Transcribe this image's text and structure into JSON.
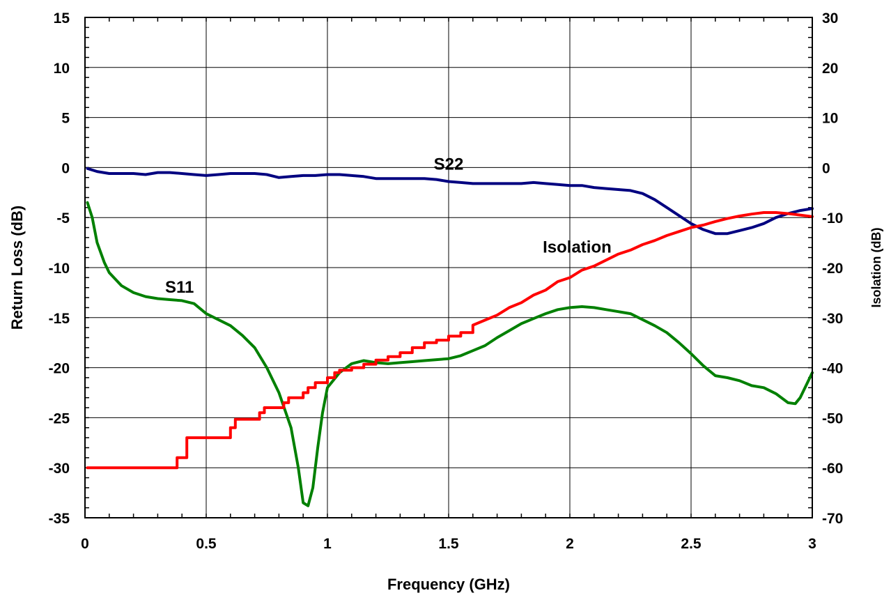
{
  "chart_data": {
    "type": "line",
    "title": "",
    "xlabel": "Frequency (GHz)",
    "ylabel": "Return Loss (dB)",
    "y2label": "Isolation (dB)",
    "xlim": [
      0,
      3
    ],
    "ylim": [
      -35,
      15
    ],
    "y2lim": [
      -70,
      30
    ],
    "grid": true,
    "x_ticks": [
      "0",
      "0.5",
      "1",
      "1.5",
      "2",
      "2.5",
      "3"
    ],
    "y_ticks": [
      "15",
      "10",
      "5",
      "0",
      "-5",
      "-10",
      "-15",
      "-20",
      "-25",
      "-30",
      "-35"
    ],
    "y2_ticks": [
      "30",
      "20",
      "10",
      "0",
      "-10",
      "-20",
      "-30",
      "-40",
      "-50",
      "-60",
      "-70"
    ],
    "series": [
      {
        "name": "S22",
        "axis": "left",
        "color": "#000080",
        "x": [
          0.01,
          0.05,
          0.1,
          0.15,
          0.2,
          0.25,
          0.3,
          0.35,
          0.4,
          0.45,
          0.5,
          0.55,
          0.6,
          0.65,
          0.7,
          0.75,
          0.8,
          0.85,
          0.9,
          0.95,
          1.0,
          1.05,
          1.1,
          1.15,
          1.2,
          1.25,
          1.3,
          1.35,
          1.4,
          1.45,
          1.5,
          1.55,
          1.6,
          1.65,
          1.7,
          1.75,
          1.8,
          1.85,
          1.9,
          1.95,
          2.0,
          2.05,
          2.1,
          2.15,
          2.2,
          2.25,
          2.3,
          2.35,
          2.4,
          2.45,
          2.5,
          2.55,
          2.6,
          2.65,
          2.7,
          2.75,
          2.8,
          2.85,
          2.9,
          2.95,
          3.0
        ],
        "values": [
          -0.1,
          -0.4,
          -0.6,
          -0.6,
          -0.6,
          -0.7,
          -0.5,
          -0.5,
          -0.6,
          -0.7,
          -0.8,
          -0.7,
          -0.6,
          -0.6,
          -0.6,
          -0.7,
          -1.0,
          -0.9,
          -0.8,
          -0.8,
          -0.7,
          -0.7,
          -0.8,
          -0.9,
          -1.1,
          -1.1,
          -1.1,
          -1.1,
          -1.1,
          -1.2,
          -1.4,
          -1.5,
          -1.6,
          -1.6,
          -1.6,
          -1.6,
          -1.6,
          -1.5,
          -1.6,
          -1.7,
          -1.8,
          -1.8,
          -2.0,
          -2.1,
          -2.2,
          -2.3,
          -2.6,
          -3.2,
          -4.0,
          -4.8,
          -5.6,
          -6.2,
          -6.6,
          -6.6,
          -6.3,
          -6.0,
          -5.6,
          -5.0,
          -4.6,
          -4.3,
          -4.1
        ]
      },
      {
        "name": "S11",
        "axis": "left",
        "color": "#008000",
        "x": [
          0.01,
          0.03,
          0.05,
          0.08,
          0.1,
          0.15,
          0.2,
          0.25,
          0.3,
          0.35,
          0.4,
          0.45,
          0.5,
          0.55,
          0.6,
          0.65,
          0.7,
          0.75,
          0.8,
          0.85,
          0.88,
          0.9,
          0.92,
          0.94,
          0.96,
          0.98,
          1.0,
          1.05,
          1.1,
          1.15,
          1.2,
          1.25,
          1.3,
          1.35,
          1.4,
          1.45,
          1.5,
          1.55,
          1.6,
          1.65,
          1.7,
          1.75,
          1.8,
          1.85,
          1.9,
          1.95,
          2.0,
          2.05,
          2.1,
          2.15,
          2.2,
          2.25,
          2.3,
          2.35,
          2.4,
          2.45,
          2.5,
          2.55,
          2.6,
          2.65,
          2.7,
          2.75,
          2.8,
          2.85,
          2.9,
          2.93,
          2.95,
          3.0
        ],
        "values": [
          -3.5,
          -5.0,
          -7.5,
          -9.5,
          -10.5,
          -11.8,
          -12.5,
          -12.9,
          -13.1,
          -13.2,
          -13.3,
          -13.6,
          -14.6,
          -15.2,
          -15.8,
          -16.8,
          -18.0,
          -20.0,
          -22.5,
          -26.0,
          -30.0,
          -33.5,
          -33.8,
          -32.0,
          -28.0,
          -24.5,
          -22.0,
          -20.5,
          -19.6,
          -19.3,
          -19.5,
          -19.6,
          -19.5,
          -19.4,
          -19.3,
          -19.2,
          -19.1,
          -18.8,
          -18.3,
          -17.8,
          -17.0,
          -16.3,
          -15.6,
          -15.1,
          -14.6,
          -14.2,
          -14.0,
          -13.9,
          -14.0,
          -14.2,
          -14.4,
          -14.6,
          -15.2,
          -15.8,
          -16.5,
          -17.5,
          -18.6,
          -19.8,
          -20.8,
          -21.0,
          -21.3,
          -21.8,
          -22.0,
          -22.6,
          -23.5,
          -23.6,
          -23.0,
          -20.5
        ]
      },
      {
        "name": "Isolation",
        "axis": "right",
        "color": "#ff0000",
        "x": [
          0.01,
          0.38,
          0.38,
          0.42,
          0.42,
          0.6,
          0.6,
          0.62,
          0.62,
          0.72,
          0.72,
          0.74,
          0.74,
          0.82,
          0.82,
          0.84,
          0.84,
          0.9,
          0.9,
          0.92,
          0.92,
          0.95,
          0.95,
          1.0,
          1.0,
          1.03,
          1.03,
          1.05,
          1.05,
          1.1,
          1.1,
          1.15,
          1.15,
          1.2,
          1.2,
          1.25,
          1.25,
          1.3,
          1.3,
          1.35,
          1.35,
          1.4,
          1.4,
          1.45,
          1.45,
          1.5,
          1.5,
          1.55,
          1.55,
          1.6,
          1.6,
          1.65,
          1.7,
          1.75,
          1.8,
          1.85,
          1.9,
          1.95,
          2.0,
          2.05,
          2.1,
          2.15,
          2.2,
          2.25,
          2.3,
          2.35,
          2.4,
          2.45,
          2.5,
          2.55,
          2.6,
          2.65,
          2.7,
          2.75,
          2.8,
          2.85,
          2.9,
          2.95,
          3.0
        ],
        "values": [
          -60,
          -60,
          -58,
          -58,
          -54,
          -54,
          -52,
          -52,
          -50.3,
          -50.3,
          -49,
          -49,
          -48,
          -48,
          -47,
          -47,
          -46,
          -46,
          -45,
          -45,
          -44,
          -44,
          -43,
          -43,
          -42,
          -42,
          -41,
          -41,
          -40.5,
          -40.5,
          -40,
          -40,
          -39.3,
          -39.3,
          -38.5,
          -38.5,
          -37.8,
          -37.8,
          -37,
          -37,
          -36,
          -36,
          -35,
          -35,
          -34.5,
          -34.5,
          -33.7,
          -33.7,
          -33,
          -33,
          -31.5,
          -30.5,
          -29.5,
          -28,
          -27,
          -25.5,
          -24.5,
          -22.8,
          -22,
          -20.5,
          -19.7,
          -18.5,
          -17.3,
          -16.5,
          -15.4,
          -14.6,
          -13.6,
          -12.8,
          -12.0,
          -11.5,
          -10.8,
          -10.2,
          -9.7,
          -9.3,
          -9.0,
          -9.0,
          -9.2,
          -9.5,
          -9.8
        ]
      }
    ],
    "annotations": [
      {
        "text": "S22",
        "x": 1.5,
        "y": -0.2
      },
      {
        "text": "Isolation",
        "x": 2.03,
        "y": -8.5
      },
      {
        "text": "S11",
        "x": 0.39,
        "y": -12.5
      }
    ]
  }
}
